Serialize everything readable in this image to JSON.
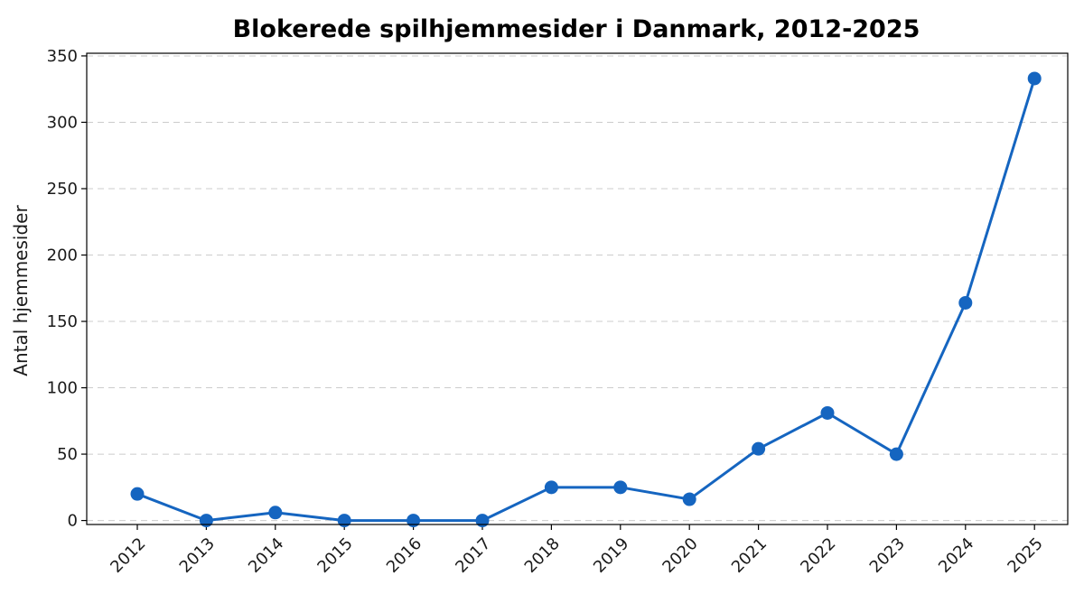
{
  "chart_data": {
    "type": "line",
    "title": "Blokerede spilhjemmesider i Danmark, 2012-2025",
    "xlabel": "",
    "ylabel": "Antal hjemmesider",
    "categories": [
      "2012",
      "2013",
      "2014",
      "2015",
      "2016",
      "2017",
      "2018",
      "2019",
      "2020",
      "2021",
      "2022",
      "2023",
      "2024",
      "2025"
    ],
    "series": [
      {
        "values": [
          20,
          0,
          6,
          0,
          0,
          0,
          25,
          25,
          16,
          54,
          81,
          50,
          164,
          333
        ],
        "color": "#1565c0"
      }
    ],
    "ylim": [
      -3,
      352
    ],
    "yticks": [
      0,
      50,
      100,
      150,
      200,
      250,
      300,
      350
    ],
    "grid": "horizontal-dashed",
    "legend": "none",
    "tick_rotation": -45
  }
}
